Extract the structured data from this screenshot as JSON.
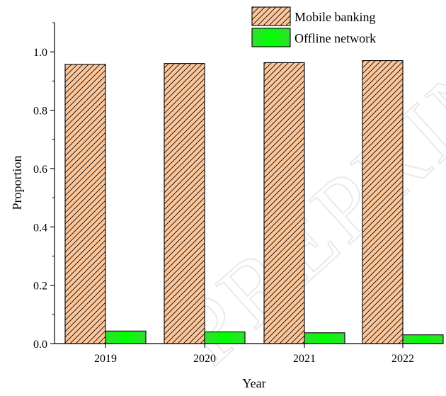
{
  "chart_data": {
    "type": "bar",
    "title": "",
    "xlabel": "Year",
    "ylabel": "Proportion",
    "categories": [
      "2019",
      "2020",
      "2021",
      "2022"
    ],
    "series": [
      {
        "name": "Mobile banking",
        "values": [
          0.957,
          0.96,
          0.963,
          0.97
        ],
        "color": "#FDC69A",
        "pattern": "diagonal-hatch"
      },
      {
        "name": "Offline network",
        "values": [
          0.043,
          0.04,
          0.037,
          0.03
        ],
        "color": "#33DD33",
        "pattern": "gradient"
      }
    ],
    "ylim": [
      0,
      1.1
    ],
    "yticks": [
      "0.0",
      "0.2",
      "0.4",
      "0.6",
      "0.8",
      "1.0"
    ],
    "grid": false,
    "legend_position": "top-right"
  },
  "watermark": "PREPRINT"
}
